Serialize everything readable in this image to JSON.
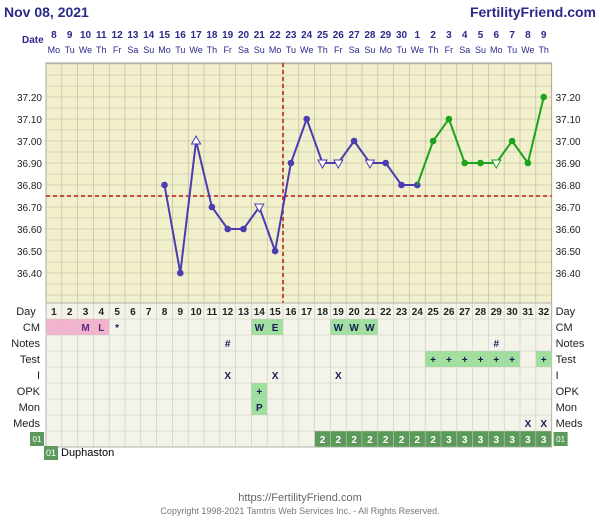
{
  "header": {
    "date": "Nov 08, 2021",
    "site": "FertilityFriend.com"
  },
  "footer": {
    "url": "https://FertilityFriend.com",
    "copyright": "Copyright 1998-2021 Tamtris Web Services Inc. - All Rights Reserved."
  },
  "legend": {
    "code": "01",
    "label": "Duphaston"
  },
  "colors": {
    "phase1": "#4b3cb0",
    "phase2": "#1aa51a",
    "coverline": "#c0392b",
    "grid_bg": "#f1efcc",
    "table_bg": "#f3f3ea",
    "green_cell": "#9fe09f",
    "pink_cell": "#f2b3cf",
    "dark_green_cell": "#5b9a5b"
  },
  "chart_data": {
    "type": "line",
    "title": "",
    "ylim": [
      36.3,
      37.3
    ],
    "yticks": [
      "37.20",
      "37.10",
      "37.00",
      "36.90",
      "36.80",
      "36.70",
      "36.60",
      "36.50",
      "36.40"
    ],
    "coverline": 36.75,
    "ovulation_day": 15,
    "dates": [
      "8",
      "9",
      "10",
      "11",
      "12",
      "13",
      "14",
      "15",
      "16",
      "17",
      "18",
      "19",
      "20",
      "21",
      "22",
      "23",
      "24",
      "25",
      "26",
      "27",
      "28",
      "29",
      "30",
      "1",
      "2",
      "3",
      "4",
      "5",
      "6",
      "7",
      "8",
      "9"
    ],
    "weekdays": [
      "Mo",
      "Tu",
      "We",
      "Th",
      "Fr",
      "Sa",
      "Su",
      "Mo",
      "Tu",
      "We",
      "Th",
      "Fr",
      "Sa",
      "Su",
      "Mo",
      "Tu",
      "We",
      "Th",
      "Fr",
      "Sa",
      "Su",
      "Mo",
      "Tu",
      "We",
      "Th",
      "Fr",
      "Sa",
      "Su",
      "Mo",
      "Tu",
      "We",
      "Th"
    ],
    "days": [
      "1",
      "2",
      "3",
      "4",
      "5",
      "6",
      "7",
      "8",
      "9",
      "10",
      "11",
      "12",
      "13",
      "14",
      "15",
      "16",
      "17",
      "18",
      "19",
      "20",
      "21",
      "22",
      "23",
      "24",
      "25",
      "26",
      "27",
      "28",
      "29",
      "30",
      "31",
      "32"
    ],
    "series": [
      {
        "phase": "pre",
        "points": [
          {
            "day": 8,
            "temp": 36.8,
            "marker": "dot"
          },
          {
            "day": 9,
            "temp": 36.4,
            "marker": "dot"
          },
          {
            "day": 10,
            "temp": 37.0,
            "marker": "open-triangle-up"
          },
          {
            "day": 11,
            "temp": 36.7,
            "marker": "dot"
          },
          {
            "day": 12,
            "temp": 36.6,
            "marker": "dot"
          },
          {
            "day": 13,
            "temp": 36.6,
            "marker": "dot"
          },
          {
            "day": 14,
            "temp": 36.7,
            "marker": "open-triangle-down"
          },
          {
            "day": 15,
            "temp": 36.5,
            "marker": "dot"
          },
          {
            "day": 16,
            "temp": 36.9,
            "marker": "dot"
          },
          {
            "day": 17,
            "temp": 37.1,
            "marker": "dot"
          },
          {
            "day": 18,
            "temp": 36.9,
            "marker": "open-triangle-down"
          },
          {
            "day": 19,
            "temp": 36.9,
            "marker": "open-triangle-down"
          },
          {
            "day": 20,
            "temp": 37.0,
            "marker": "dot"
          },
          {
            "day": 21,
            "temp": 36.9,
            "marker": "open-triangle-down"
          },
          {
            "day": 22,
            "temp": 36.9,
            "marker": "dot"
          },
          {
            "day": 23,
            "temp": 36.8,
            "marker": "dot"
          },
          {
            "day": 24,
            "temp": 36.8,
            "marker": "dot"
          }
        ]
      },
      {
        "phase": "post",
        "points": [
          {
            "day": 24,
            "temp": 36.8,
            "marker": "none"
          },
          {
            "day": 25,
            "temp": 37.0,
            "marker": "dot"
          },
          {
            "day": 26,
            "temp": 37.1,
            "marker": "dot"
          },
          {
            "day": 27,
            "temp": 36.9,
            "marker": "dot"
          },
          {
            "day": 28,
            "temp": 36.9,
            "marker": "dot"
          },
          {
            "day": 29,
            "temp": 36.9,
            "marker": "open-triangle-down"
          },
          {
            "day": 30,
            "temp": 37.0,
            "marker": "dot"
          },
          {
            "day": 31,
            "temp": 36.9,
            "marker": "dot"
          },
          {
            "day": 32,
            "temp": 37.2,
            "marker": "dot"
          }
        ]
      }
    ],
    "rows": [
      {
        "label": "CM",
        "cells": [
          {
            "day": 1,
            "text": "",
            "bg": "pink"
          },
          {
            "day": 2,
            "text": "",
            "bg": "pink"
          },
          {
            "day": 3,
            "text": "M",
            "bg": "pink"
          },
          {
            "day": 4,
            "text": "L",
            "bg": "pink"
          },
          {
            "day": 5,
            "text": "*",
            "bg": ""
          },
          {
            "day": 14,
            "text": "W",
            "bg": "green"
          },
          {
            "day": 15,
            "text": "E",
            "bg": "green"
          },
          {
            "day": 19,
            "text": "W",
            "bg": "green"
          },
          {
            "day": 20,
            "text": "W",
            "bg": "green"
          },
          {
            "day": 21,
            "text": "W",
            "bg": "green"
          }
        ]
      },
      {
        "label": "Notes",
        "cells": [
          {
            "day": 12,
            "text": "#",
            "bg": ""
          },
          {
            "day": 29,
            "text": "#",
            "bg": ""
          }
        ]
      },
      {
        "label": "Test",
        "cells": [
          {
            "day": 25,
            "text": "+",
            "bg": "green"
          },
          {
            "day": 26,
            "text": "+",
            "bg": "green"
          },
          {
            "day": 27,
            "text": "+",
            "bg": "green"
          },
          {
            "day": 28,
            "text": "+",
            "bg": "green"
          },
          {
            "day": 29,
            "text": "+",
            "bg": "green"
          },
          {
            "day": 30,
            "text": "+",
            "bg": "green"
          },
          {
            "day": 32,
            "text": "+",
            "bg": "green"
          }
        ]
      },
      {
        "label": "I",
        "cells": [
          {
            "day": 12,
            "text": "X",
            "bg": ""
          },
          {
            "day": 15,
            "text": "X",
            "bg": ""
          },
          {
            "day": 19,
            "text": "X",
            "bg": ""
          }
        ]
      },
      {
        "label": "OPK",
        "cells": [
          {
            "day": 14,
            "text": "+",
            "bg": "green"
          }
        ]
      },
      {
        "label": "Mon",
        "cells": [
          {
            "day": 14,
            "text": "P",
            "bg": "green"
          }
        ]
      },
      {
        "label": "Meds",
        "cells": [
          {
            "day": 31,
            "text": "X",
            "bg": ""
          },
          {
            "day": 32,
            "text": "X",
            "bg": ""
          }
        ]
      },
      {
        "label": "01",
        "cells": [
          {
            "day": 18,
            "text": "2",
            "bg": "dark"
          },
          {
            "day": 19,
            "text": "2",
            "bg": "dark"
          },
          {
            "day": 20,
            "text": "2",
            "bg": "dark"
          },
          {
            "day": 21,
            "text": "2",
            "bg": "dark"
          },
          {
            "day": 22,
            "text": "2",
            "bg": "dark"
          },
          {
            "day": 23,
            "text": "2",
            "bg": "dark"
          },
          {
            "day": 24,
            "text": "2",
            "bg": "dark"
          },
          {
            "day": 25,
            "text": "2",
            "bg": "dark"
          },
          {
            "day": 26,
            "text": "3",
            "bg": "dark"
          },
          {
            "day": 27,
            "text": "3",
            "bg": "dark"
          },
          {
            "day": 28,
            "text": "3",
            "bg": "dark"
          },
          {
            "day": 29,
            "text": "3",
            "bg": "dark"
          },
          {
            "day": 30,
            "text": "3",
            "bg": "dark"
          },
          {
            "day": 31,
            "text": "3",
            "bg": "dark"
          },
          {
            "day": 32,
            "text": "3",
            "bg": "dark"
          }
        ]
      }
    ],
    "row_labels": {
      "date": "Date",
      "day": "Day"
    }
  }
}
